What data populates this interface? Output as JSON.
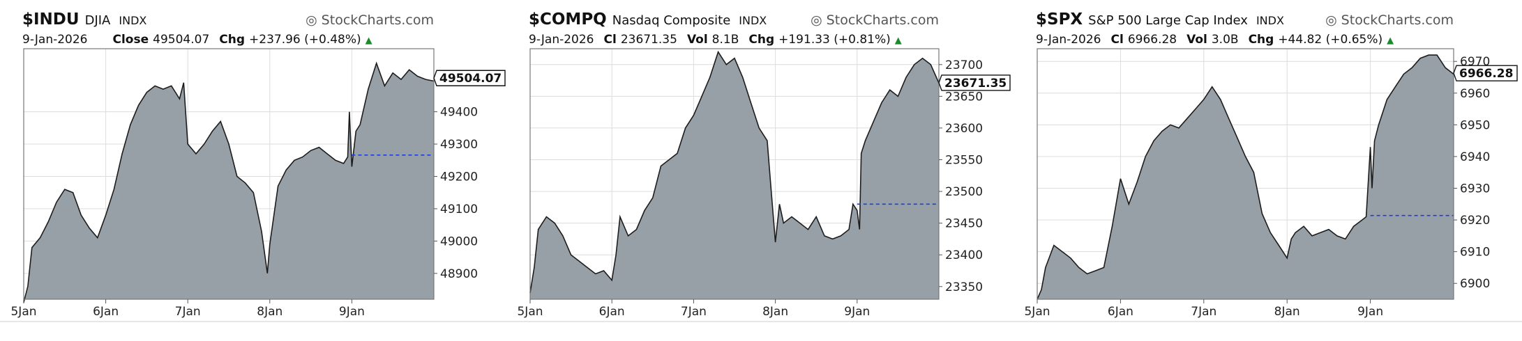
{
  "colors": {
    "area_fill": "#98a0a7",
    "area_line": "#1c1c1c",
    "prev_close_line": "#1f3bdc",
    "grid": "#dcdcdc",
    "frame": "#777777",
    "up_arrow": "#1b8a2b"
  },
  "chart_data": [
    {
      "type": "area",
      "symbol": "$INDU",
      "name": "DJIA",
      "exchange": "INDX",
      "watermark": "StockCharts.com",
      "date": "9-Jan-2026",
      "close_label": "Close",
      "close": "49504.07",
      "vol_label": "",
      "vol": "",
      "chg_label": "Chg",
      "chg": "+237.96 (+0.48%)",
      "last_label": "49504.07",
      "last_value": 49504.07,
      "prev_close": 49266,
      "ylim": [
        48820,
        49595
      ],
      "y_ticks": [
        48900,
        49000,
        49100,
        49200,
        49300,
        49400
      ],
      "x_ticks": [
        "5Jan",
        "6Jan",
        "7Jan",
        "8Jan",
        "9Jan"
      ],
      "x_tick_pos": [
        0,
        1,
        2,
        3,
        4
      ],
      "x_range": [
        0,
        5
      ],
      "x": [
        0,
        0.05,
        0.1,
        0.2,
        0.3,
        0.4,
        0.5,
        0.6,
        0.7,
        0.8,
        0.9,
        1,
        1.1,
        1.2,
        1.3,
        1.4,
        1.5,
        1.6,
        1.7,
        1.8,
        1.9,
        1.95,
        2,
        2.1,
        2.2,
        2.3,
        2.4,
        2.5,
        2.6,
        2.7,
        2.8,
        2.9,
        2.97,
        3,
        3.1,
        3.2,
        3.3,
        3.4,
        3.5,
        3.6,
        3.7,
        3.8,
        3.9,
        3.95,
        3.97,
        4,
        4.05,
        4.1,
        4.2,
        4.3,
        4.4,
        4.5,
        4.6,
        4.7,
        4.8,
        4.9,
        5
      ],
      "values": [
        48810,
        48860,
        48980,
        49010,
        49060,
        49120,
        49160,
        49150,
        49080,
        49040,
        49010,
        49080,
        49160,
        49270,
        49360,
        49420,
        49460,
        49480,
        49470,
        49480,
        49440,
        49490,
        49300,
        49270,
        49300,
        49340,
        49370,
        49300,
        49200,
        49180,
        49150,
        49030,
        48900,
        48990,
        49170,
        49220,
        49250,
        49260,
        49280,
        49290,
        49270,
        49250,
        49240,
        49260,
        49400,
        49230,
        49340,
        49360,
        49470,
        49550,
        49480,
        49520,
        49500,
        49530,
        49510,
        49500,
        49495
      ]
    },
    {
      "type": "area",
      "symbol": "$COMPQ",
      "name": "Nasdaq Composite",
      "exchange": "INDX",
      "watermark": "StockCharts.com",
      "date": "9-Jan-2026",
      "close_label": "Cl",
      "close": "23671.35",
      "vol_label": "Vol",
      "vol": "8.1B",
      "chg_label": "Chg",
      "chg": "+191.33 (+0.81%)",
      "last_label": "23671.35",
      "last_value": 23671.35,
      "prev_close": 23480,
      "ylim": [
        23330,
        23725
      ],
      "y_ticks": [
        23350,
        23400,
        23450,
        23500,
        23550,
        23600,
        23650,
        23700
      ],
      "x_ticks": [
        "5Jan",
        "6Jan",
        "7Jan",
        "8Jan",
        "9Jan"
      ],
      "x_tick_pos": [
        0,
        1,
        2,
        3,
        4
      ],
      "x_range": [
        0,
        5
      ],
      "x": [
        0,
        0.05,
        0.1,
        0.2,
        0.3,
        0.4,
        0.5,
        0.6,
        0.7,
        0.8,
        0.9,
        1,
        1.05,
        1.1,
        1.2,
        1.3,
        1.4,
        1.5,
        1.6,
        1.7,
        1.8,
        1.9,
        2,
        2.1,
        2.2,
        2.3,
        2.4,
        2.5,
        2.6,
        2.7,
        2.8,
        2.9,
        2.95,
        3,
        3.05,
        3.1,
        3.2,
        3.3,
        3.4,
        3.5,
        3.6,
        3.7,
        3.8,
        3.9,
        3.95,
        4,
        4.03,
        4.05,
        4.1,
        4.2,
        4.3,
        4.4,
        4.5,
        4.6,
        4.7,
        4.8,
        4.9,
        5
      ],
      "values": [
        23340,
        23380,
        23440,
        23460,
        23450,
        23430,
        23400,
        23390,
        23380,
        23370,
        23375,
        23360,
        23400,
        23460,
        23430,
        23440,
        23470,
        23490,
        23540,
        23550,
        23560,
        23600,
        23620,
        23650,
        23680,
        23720,
        23700,
        23710,
        23680,
        23640,
        23600,
        23580,
        23500,
        23420,
        23480,
        23450,
        23460,
        23450,
        23440,
        23460,
        23430,
        23425,
        23430,
        23440,
        23480,
        23470,
        23440,
        23560,
        23580,
        23610,
        23640,
        23660,
        23650,
        23680,
        23700,
        23710,
        23700,
        23671
      ]
    },
    {
      "type": "area",
      "symbol": "$SPX",
      "name": "S&P 500 Large Cap Index",
      "exchange": "INDX",
      "watermark": "StockCharts.com",
      "date": "9-Jan-2026",
      "close_label": "Cl",
      "close": "6966.28",
      "vol_label": "Vol",
      "vol": "3.0B",
      "chg_label": "Chg",
      "chg": "+44.82 (+0.65%)",
      "last_label": "6966.28",
      "last_value": 6966.28,
      "prev_close": 6921.4,
      "ylim": [
        6895,
        6974
      ],
      "y_ticks": [
        6900,
        6910,
        6920,
        6930,
        6940,
        6950,
        6960,
        6970
      ],
      "x_ticks": [
        "5Jan",
        "6Jan",
        "7Jan",
        "8Jan",
        "9Jan"
      ],
      "x_tick_pos": [
        0,
        1,
        2,
        3,
        4
      ],
      "x_range": [
        0,
        5
      ],
      "x": [
        0,
        0.05,
        0.1,
        0.2,
        0.3,
        0.4,
        0.5,
        0.6,
        0.7,
        0.8,
        0.9,
        1,
        1.1,
        1.2,
        1.3,
        1.4,
        1.5,
        1.6,
        1.7,
        1.8,
        1.9,
        2,
        2.1,
        2.2,
        2.3,
        2.4,
        2.5,
        2.6,
        2.7,
        2.8,
        2.9,
        3,
        3.05,
        3.1,
        3.2,
        3.3,
        3.4,
        3.5,
        3.6,
        3.7,
        3.8,
        3.9,
        3.95,
        4,
        4.02,
        4.05,
        4.1,
        4.2,
        4.3,
        4.4,
        4.5,
        4.6,
        4.7,
        4.8,
        4.9,
        5
      ],
      "values": [
        6895,
        6898,
        6905,
        6912,
        6910,
        6908,
        6905,
        6903,
        6904,
        6905,
        6918,
        6933,
        6925,
        6932,
        6940,
        6945,
        6948,
        6950,
        6949,
        6952,
        6955,
        6958,
        6962,
        6958,
        6952,
        6946,
        6940,
        6935,
        6922,
        6916,
        6912,
        6908,
        6914,
        6916,
        6918,
        6915,
        6916,
        6917,
        6915,
        6914,
        6918,
        6920,
        6921,
        6943,
        6930,
        6945,
        6950,
        6958,
        6962,
        6966,
        6968,
        6971,
        6972,
        6972,
        6968,
        6966
      ]
    }
  ]
}
